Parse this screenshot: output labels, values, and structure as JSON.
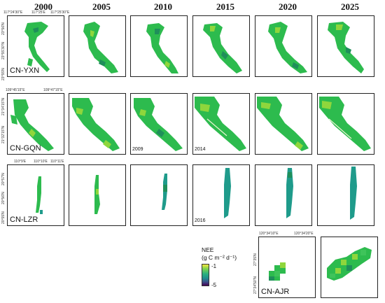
{
  "years": [
    "2000",
    "2005",
    "2010",
    "2015",
    "2020",
    "2025"
  ],
  "sites": {
    "yxn": "CN-YXN",
    "gqn": "CN-GQN",
    "lzr": "CN-LZR",
    "ajr": "CN-AJR"
  },
  "inset_years": {
    "gqn_2010": "2009",
    "gqn_2015": "2014",
    "lzr_2015": "2016"
  },
  "ticks": {
    "yxn_lon": [
      "117°24'30\"E",
      "117°25'E",
      "117°25'30\"E"
    ],
    "yxn_lat": [
      "23°56'N",
      "23°55'30\"N",
      "23°55'N"
    ],
    "gqn_lon": [
      "109°45'15\"E",
      "109°47'15\"E"
    ],
    "gqn_lat": [
      "21°34'15\"N",
      "21°32'15\"N"
    ],
    "lzr_lon": [
      "110°9'E",
      "110°10'E",
      "110°11'E"
    ],
    "lzr_lat": [
      "20°57'N",
      "20°56'N",
      "20°55'N"
    ],
    "ajr_lon": [
      "120°34'10\"E",
      "120°34'20\"E"
    ],
    "ajr_lat": [
      "27°35'N",
      "27°34'50\"N"
    ]
  },
  "legend": {
    "title_line1": "NEE",
    "title_line2": "(g C m⁻² d⁻¹)",
    "max": "-1",
    "min": "-5",
    "colormap": [
      "#440154",
      "#3b528b",
      "#218f8d",
      "#2ab07f",
      "#7fd34e",
      "#f5e640"
    ]
  },
  "colors": {
    "dominant": "#2dbb4e",
    "bright": "#8fd63c",
    "dark": "#1f8f5a",
    "teal": "#1f9b8b"
  }
}
